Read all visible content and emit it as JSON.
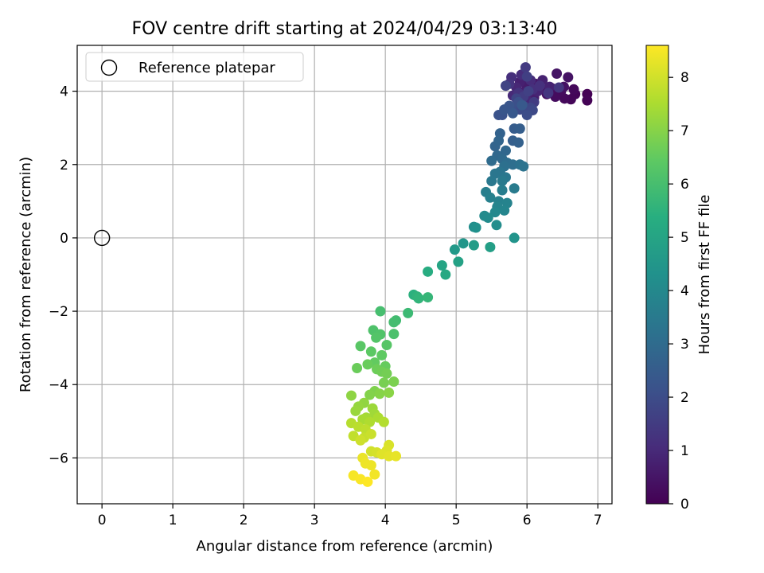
{
  "chart_data": {
    "type": "scatter",
    "title": "FOV centre drift starting at 2024/04/29 03:13:40",
    "xlabel": "Angular distance from reference (arcmin)",
    "ylabel": "Rotation from reference (arcmin)",
    "xlim": [
      -0.35,
      7.2
    ],
    "ylim": [
      -7.25,
      5.25
    ],
    "xticks": [
      "0",
      "1",
      "2",
      "3",
      "4",
      "5",
      "6",
      "7"
    ],
    "yticks": [
      "−6",
      "−4",
      "−2",
      "0",
      "2",
      "4"
    ],
    "grid": true,
    "legend": {
      "placement": "top-left",
      "entries": [
        "Reference platepar"
      ]
    },
    "reference_point": {
      "x": 0,
      "y": 0
    },
    "colorbar": {
      "label": "Hours from first FF file",
      "range": [
        0,
        8.6
      ],
      "ticks": [
        "0",
        "1",
        "2",
        "3",
        "4",
        "5",
        "6",
        "7",
        "8"
      ],
      "colormap": "viridis"
    },
    "series": [
      {
        "points": [
          [
            6.85,
            3.92,
            0.0
          ],
          [
            6.85,
            3.75,
            0.04
          ],
          [
            6.68,
            3.92,
            0.08
          ],
          [
            6.62,
            3.78,
            0.12
          ],
          [
            6.66,
            4.05,
            0.16
          ],
          [
            6.53,
            3.8,
            0.2
          ],
          [
            6.48,
            4.0,
            0.24
          ],
          [
            6.4,
            3.85,
            0.28
          ],
          [
            6.35,
            4.08,
            0.32
          ],
          [
            6.28,
            3.92,
            0.36
          ],
          [
            6.52,
            4.12,
            0.4
          ],
          [
            6.58,
            4.38,
            0.44
          ],
          [
            6.42,
            4.48,
            0.48
          ],
          [
            6.2,
            4.05,
            0.52
          ],
          [
            6.12,
            4.2,
            0.56
          ],
          [
            6.05,
            3.9,
            0.6
          ],
          [
            6.0,
            4.15,
            0.64
          ],
          [
            5.95,
            3.98,
            0.68
          ],
          [
            6.1,
            3.82,
            0.72
          ],
          [
            5.9,
            4.25,
            0.76
          ],
          [
            6.22,
            4.3,
            0.8
          ],
          [
            6.32,
            4.12,
            0.84
          ],
          [
            6.15,
            4.0,
            0.88
          ],
          [
            5.85,
            4.1,
            0.92
          ],
          [
            6.0,
            3.75,
            0.96
          ],
          [
            5.8,
            3.88,
            1.0
          ],
          [
            6.05,
            4.3,
            1.04
          ],
          [
            5.92,
            4.45,
            1.08
          ],
          [
            5.78,
            4.38,
            1.12
          ],
          [
            6.08,
            4.05,
            1.16
          ],
          [
            6.18,
            4.15,
            1.2
          ],
          [
            5.88,
            3.95,
            1.24
          ],
          [
            5.75,
            4.2,
            1.28
          ],
          [
            6.3,
            3.95,
            1.32
          ],
          [
            6.45,
            4.1,
            1.36
          ],
          [
            5.98,
            4.65,
            1.45
          ],
          [
            6.1,
            3.7,
            1.5
          ],
          [
            5.95,
            3.85,
            1.55
          ],
          [
            6.0,
            4.4,
            1.6
          ],
          [
            6.02,
            4.0,
            1.65
          ],
          [
            5.7,
            4.15,
            1.7
          ],
          [
            5.85,
            3.8,
            1.75
          ],
          [
            6.05,
            3.55,
            1.8
          ],
          [
            5.95,
            3.6,
            1.85
          ],
          [
            6.08,
            3.48,
            1.9
          ],
          [
            5.9,
            3.5,
            1.95
          ],
          [
            6.0,
            3.35,
            2.0
          ],
          [
            5.78,
            3.55,
            2.05
          ],
          [
            5.88,
            3.7,
            2.1
          ],
          [
            5.65,
            3.35,
            2.15
          ],
          [
            5.6,
            3.35,
            2.2
          ],
          [
            5.75,
            3.6,
            2.25
          ],
          [
            5.68,
            3.5,
            2.3
          ],
          [
            5.8,
            3.4,
            2.35
          ],
          [
            5.93,
            3.62,
            2.4
          ],
          [
            5.82,
            2.98,
            2.5
          ],
          [
            5.9,
            2.98,
            2.55
          ],
          [
            5.8,
            2.65,
            2.6
          ],
          [
            5.88,
            2.6,
            2.65
          ],
          [
            5.62,
            2.85,
            2.7
          ],
          [
            5.55,
            2.5,
            2.75
          ],
          [
            5.6,
            2.65,
            2.8
          ],
          [
            5.7,
            2.38,
            2.85
          ],
          [
            5.58,
            2.25,
            2.9
          ],
          [
            5.65,
            2.15,
            2.95
          ],
          [
            5.5,
            2.1,
            3.0
          ],
          [
            5.72,
            2.05,
            3.05
          ],
          [
            5.8,
            2.0,
            3.1
          ],
          [
            5.68,
            1.95,
            3.15
          ],
          [
            5.9,
            2.0,
            3.2
          ],
          [
            5.95,
            1.95,
            3.25
          ],
          [
            5.62,
            1.8,
            3.3
          ],
          [
            5.55,
            1.75,
            3.35
          ],
          [
            5.7,
            1.65,
            3.4
          ],
          [
            5.5,
            1.55,
            3.45
          ],
          [
            5.65,
            1.55,
            3.5
          ],
          [
            5.82,
            1.35,
            3.55
          ],
          [
            5.65,
            1.3,
            3.6
          ],
          [
            5.42,
            1.25,
            3.65
          ],
          [
            5.48,
            1.1,
            3.7
          ],
          [
            5.6,
            1.0,
            3.75
          ],
          [
            5.72,
            0.95,
            3.8
          ],
          [
            5.58,
            0.85,
            3.85
          ],
          [
            5.68,
            0.75,
            3.9
          ],
          [
            5.55,
            0.7,
            4.0
          ],
          [
            5.4,
            0.6,
            4.05
          ],
          [
            5.45,
            0.55,
            4.1
          ],
          [
            5.57,
            0.35,
            4.15
          ],
          [
            5.25,
            0.3,
            4.2
          ],
          [
            5.28,
            0.28,
            4.3
          ],
          [
            5.82,
            0.0,
            4.4
          ],
          [
            5.1,
            -0.15,
            4.5
          ],
          [
            4.98,
            -0.32,
            4.6
          ],
          [
            5.25,
            -0.2,
            4.7
          ],
          [
            5.48,
            -0.25,
            4.8
          ],
          [
            5.03,
            -0.65,
            4.9
          ],
          [
            4.8,
            -0.75,
            5.0
          ],
          [
            4.85,
            -1.0,
            5.15
          ],
          [
            4.6,
            -0.92,
            5.3
          ],
          [
            4.4,
            -1.55,
            5.45
          ],
          [
            4.45,
            -1.6,
            5.55
          ],
          [
            4.47,
            -1.65,
            5.6
          ],
          [
            4.6,
            -1.62,
            5.65
          ],
          [
            4.32,
            -2.05,
            5.8
          ],
          [
            4.15,
            -2.25,
            5.9
          ],
          [
            4.12,
            -2.3,
            5.95
          ],
          [
            3.93,
            -2.0,
            6.0
          ],
          [
            4.12,
            -2.62,
            6.1
          ],
          [
            3.83,
            -2.52,
            6.15
          ],
          [
            3.93,
            -2.63,
            6.2
          ],
          [
            3.87,
            -2.72,
            6.25
          ],
          [
            4.02,
            -2.92,
            6.3
          ],
          [
            3.65,
            -2.95,
            6.35
          ],
          [
            3.8,
            -3.1,
            6.4
          ],
          [
            3.95,
            -3.2,
            6.45
          ],
          [
            3.85,
            -3.4,
            6.5
          ],
          [
            4.0,
            -3.5,
            6.55
          ],
          [
            3.75,
            -3.45,
            6.6
          ],
          [
            3.6,
            -3.55,
            6.62
          ],
          [
            3.88,
            -3.58,
            6.65
          ],
          [
            3.95,
            -3.65,
            6.7
          ],
          [
            4.02,
            -3.7,
            6.75
          ],
          [
            3.98,
            -3.95,
            6.8
          ],
          [
            4.12,
            -3.92,
            6.85
          ],
          [
            3.85,
            -4.18,
            6.9
          ],
          [
            3.78,
            -4.28,
            6.95
          ],
          [
            3.92,
            -4.25,
            7.0
          ],
          [
            4.05,
            -4.22,
            7.05
          ],
          [
            3.52,
            -4.3,
            7.1
          ],
          [
            3.7,
            -4.5,
            7.15
          ],
          [
            3.62,
            -4.6,
            7.2
          ],
          [
            3.58,
            -4.72,
            7.25
          ],
          [
            3.82,
            -4.65,
            7.3
          ],
          [
            3.85,
            -4.8,
            7.35
          ],
          [
            3.73,
            -4.9,
            7.4
          ],
          [
            3.68,
            -4.95,
            7.45
          ],
          [
            3.9,
            -4.9,
            7.5
          ],
          [
            3.78,
            -5.02,
            7.55
          ],
          [
            3.98,
            -5.02,
            7.6
          ],
          [
            3.52,
            -5.05,
            7.65
          ],
          [
            3.62,
            -5.15,
            7.7
          ],
          [
            3.72,
            -5.22,
            7.75
          ],
          [
            3.55,
            -5.4,
            7.8
          ],
          [
            3.7,
            -5.45,
            7.85
          ],
          [
            3.8,
            -5.35,
            7.9
          ],
          [
            3.65,
            -5.52,
            7.95
          ],
          [
            3.8,
            -5.82,
            8.0
          ],
          [
            3.88,
            -5.85,
            8.05
          ],
          [
            4.05,
            -5.65,
            8.1
          ],
          [
            4.02,
            -5.8,
            8.15
          ],
          [
            3.95,
            -5.9,
            8.2
          ],
          [
            4.05,
            -5.95,
            8.25
          ],
          [
            4.15,
            -5.95,
            8.3
          ],
          [
            3.68,
            -6.0,
            8.35
          ],
          [
            3.8,
            -6.2,
            8.38
          ],
          [
            3.72,
            -6.15,
            8.4
          ],
          [
            3.85,
            -6.45,
            8.45
          ],
          [
            3.55,
            -6.48,
            8.5
          ],
          [
            3.65,
            -6.58,
            8.55
          ],
          [
            3.75,
            -6.65,
            8.6
          ]
        ]
      }
    ]
  }
}
